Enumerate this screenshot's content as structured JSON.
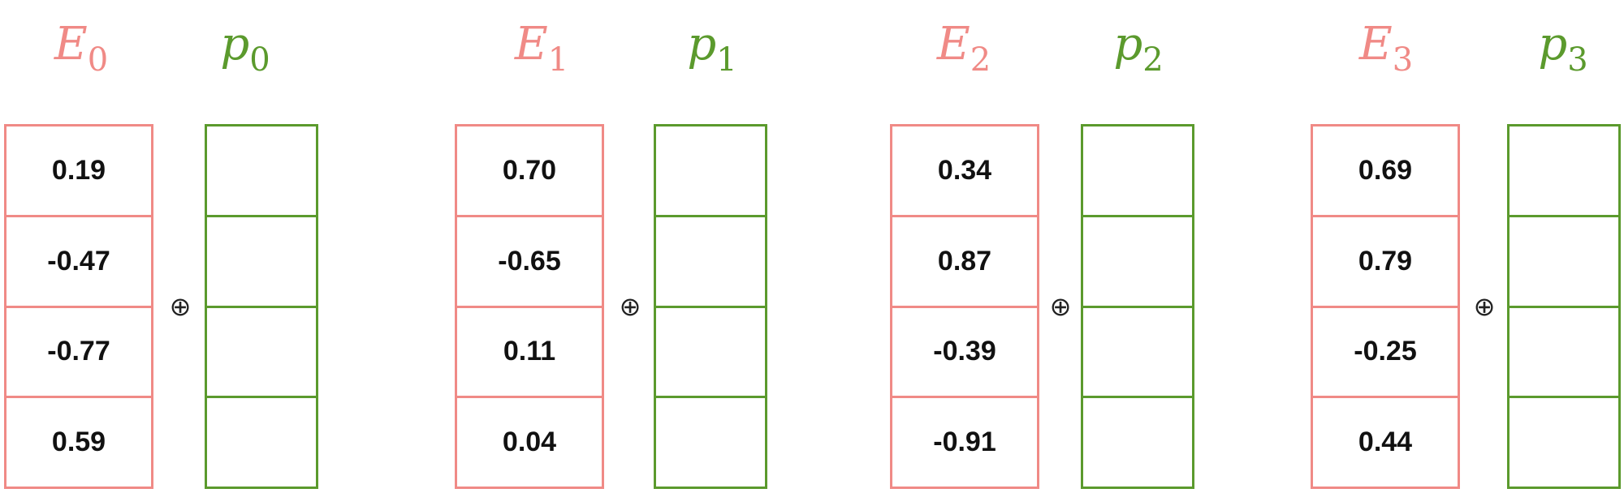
{
  "colors": {
    "embedding": "#f08a86",
    "position": "#5b9a2d"
  },
  "operator": "⊕",
  "groups": [
    {
      "e_letter": "E",
      "p_letter": "p",
      "index": "0",
      "values": [
        "0.19",
        "-0.47",
        "-0.77",
        "0.59"
      ]
    },
    {
      "e_letter": "E",
      "p_letter": "p",
      "index": "1",
      "values": [
        "0.70",
        "-0.65",
        "0.11",
        "0.04"
      ]
    },
    {
      "e_letter": "E",
      "p_letter": "p",
      "index": "2",
      "values": [
        "0.34",
        "0.87",
        "-0.39",
        "-0.91"
      ]
    },
    {
      "e_letter": "E",
      "p_letter": "p",
      "index": "3",
      "values": [
        "0.69",
        "0.79",
        "-0.25",
        "0.44"
      ]
    }
  ]
}
